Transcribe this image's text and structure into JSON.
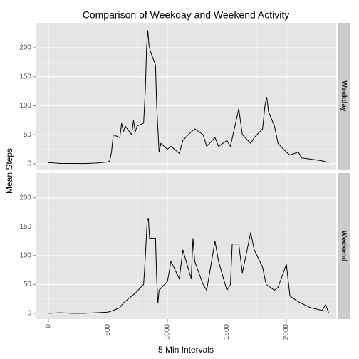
{
  "title": "Comparison of Weekday and Weekend Activity",
  "x_label": "5 Min Intervals",
  "y_label": "Mean Steps",
  "chart_data": [
    {
      "type": "line",
      "facet": "Weekday",
      "color": "#000000",
      "grid": true,
      "x": [
        0,
        100,
        200,
        300,
        400,
        500,
        515,
        530,
        545,
        600,
        615,
        630,
        645,
        700,
        715,
        730,
        745,
        800,
        815,
        825,
        835,
        845,
        855,
        900,
        910,
        920,
        930,
        945,
        1000,
        1030,
        1100,
        1130,
        1200,
        1230,
        1300,
        1330,
        1400,
        1430,
        1500,
        1530,
        1600,
        1630,
        1700,
        1730,
        1800,
        1820,
        1835,
        1850,
        1900,
        1930,
        2000,
        2030,
        2100,
        2130,
        2200,
        2300,
        2355
      ],
      "values": [
        2,
        0.5,
        0.5,
        0.3,
        1,
        3,
        5,
        20,
        50,
        45,
        70,
        55,
        65,
        50,
        75,
        55,
        65,
        70,
        130,
        200,
        230,
        205,
        195,
        170,
        100,
        60,
        20,
        35,
        25,
        30,
        18,
        40,
        55,
        60,
        50,
        30,
        45,
        30,
        40,
        30,
        95,
        50,
        35,
        45,
        60,
        100,
        115,
        90,
        65,
        35,
        20,
        15,
        20,
        10,
        8,
        5,
        2
      ],
      "xlim": [
        -108,
        2419
      ],
      "ylim": [
        -10,
        243
      ],
      "xticks": [
        0,
        500,
        1000,
        1500,
        2000
      ],
      "yticks": [
        0,
        50,
        100,
        150,
        200
      ]
    },
    {
      "type": "line",
      "facet": "Weekend",
      "color": "#000000",
      "grid": true,
      "x": [
        0,
        100,
        200,
        300,
        400,
        500,
        545,
        600,
        630,
        700,
        730,
        800,
        815,
        830,
        840,
        850,
        900,
        910,
        920,
        930,
        1000,
        1030,
        1100,
        1130,
        1200,
        1215,
        1230,
        1300,
        1330,
        1400,
        1430,
        1500,
        1530,
        1545,
        1600,
        1630,
        1700,
        1730,
        1800,
        1830,
        1900,
        1930,
        2000,
        2030,
        2100,
        2200,
        2300,
        2330,
        2355
      ],
      "values": [
        0,
        1,
        0,
        0,
        1,
        2,
        5,
        10,
        18,
        30,
        35,
        50,
        100,
        160,
        165,
        130,
        130,
        60,
        17,
        40,
        55,
        90,
        60,
        110,
        60,
        130,
        90,
        50,
        40,
        125,
        90,
        40,
        50,
        120,
        120,
        70,
        140,
        110,
        80,
        50,
        40,
        45,
        85,
        30,
        20,
        10,
        5,
        15,
        1
      ],
      "xlim": [
        -108,
        2419
      ],
      "ylim": [
        -10,
        243
      ],
      "xticks": [
        0,
        500,
        1000,
        1500,
        2000
      ],
      "yticks": [
        0,
        50,
        100,
        150,
        200
      ]
    }
  ]
}
